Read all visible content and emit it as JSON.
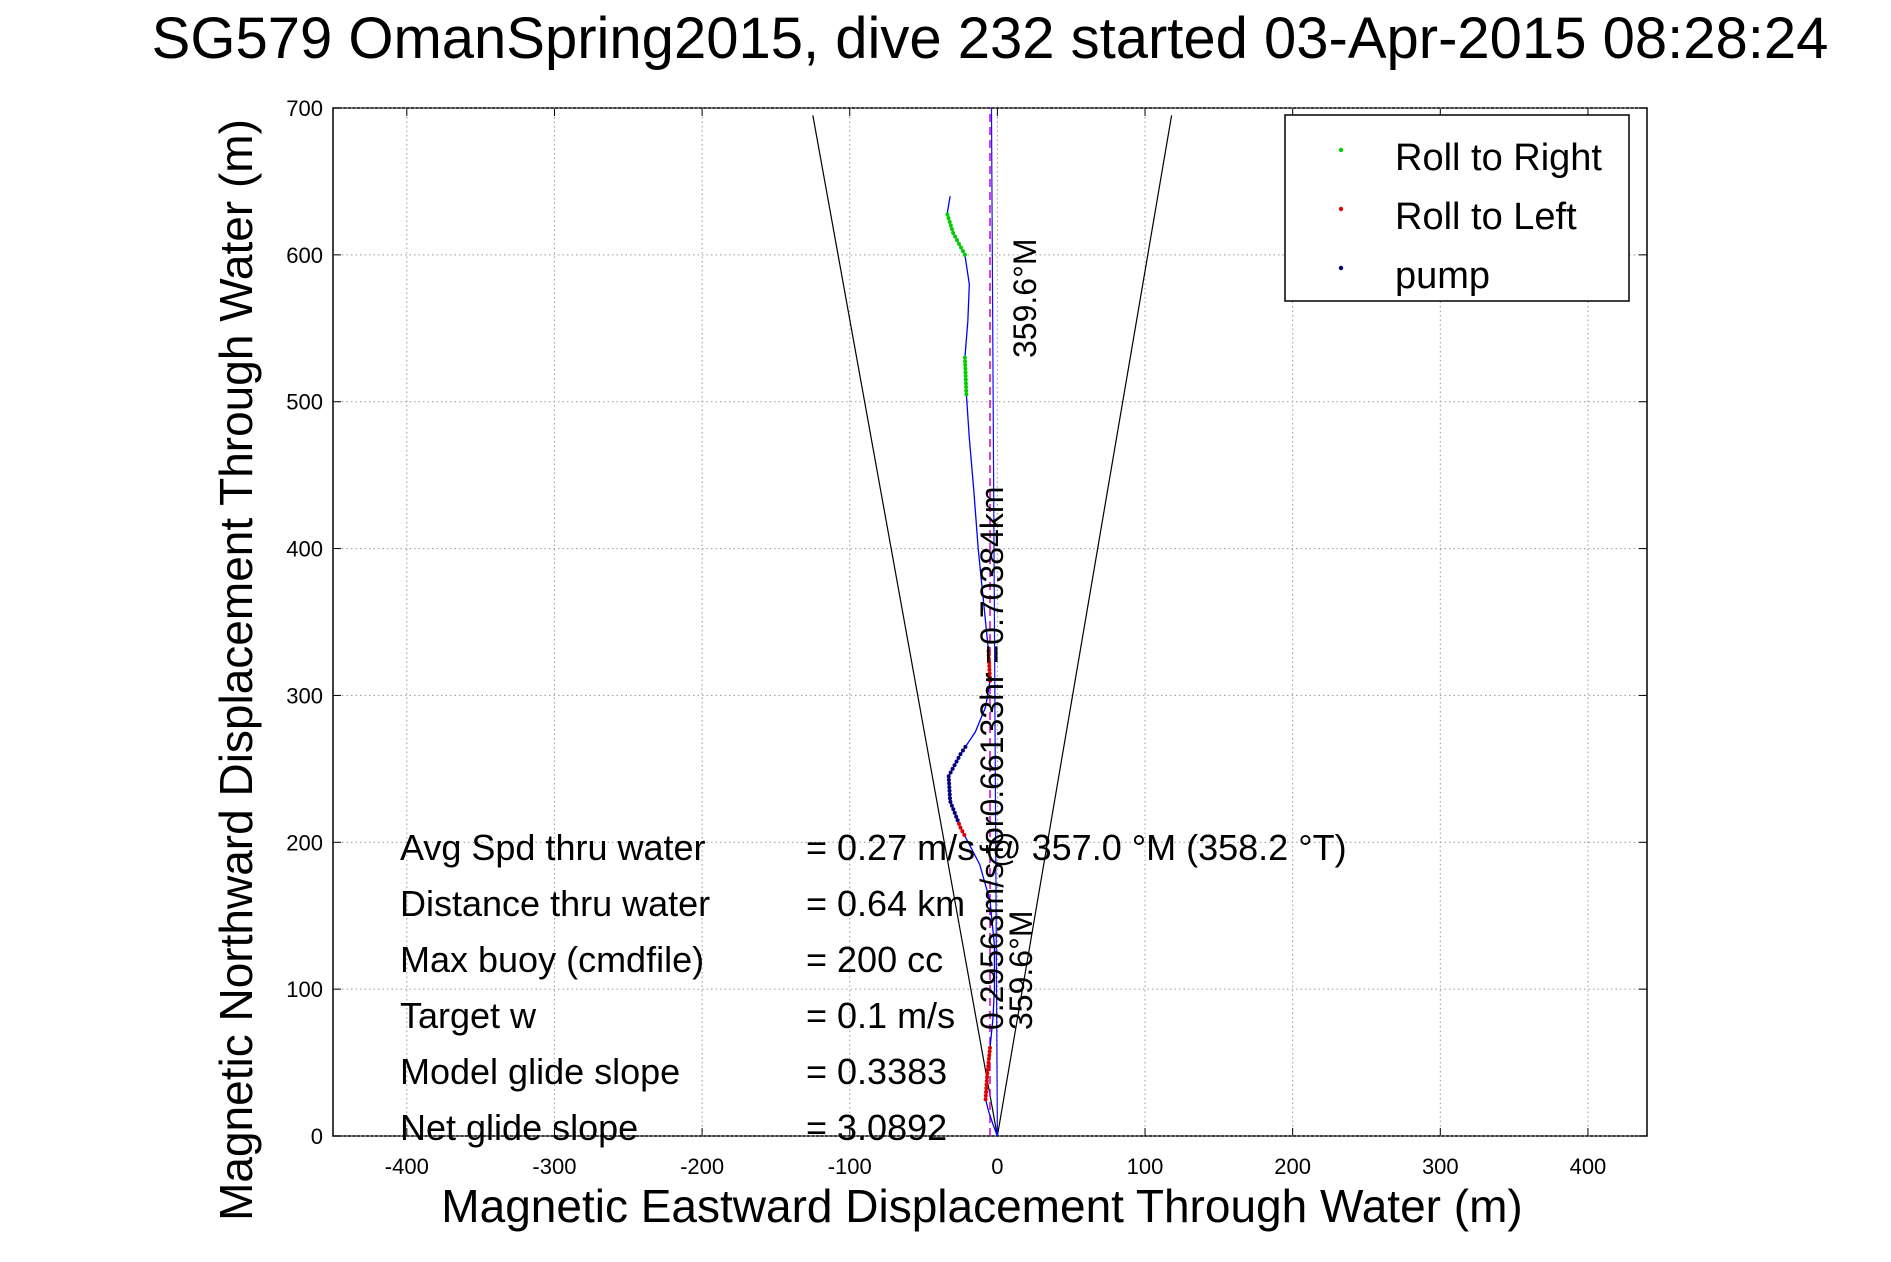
{
  "chart_data": {
    "type": "line",
    "title": "SG579 OmanSpring2015, dive 232 started 03-Apr-2015 08:28:24",
    "xlabel": "Magnetic Eastward Displacement Through Water (m)",
    "ylabel": "Magnetic Northward Displacement Through Water (m)",
    "xlim": [
      -450,
      440
    ],
    "ylim": [
      0,
      700
    ],
    "xticks": [
      -400,
      -300,
      -200,
      -100,
      0,
      100,
      200,
      300,
      400
    ],
    "yticks": [
      0,
      100,
      200,
      300,
      400,
      500,
      600,
      700
    ],
    "grid": true,
    "legend_position": "top-right",
    "legend": [
      {
        "name": "Roll to Right",
        "color": "#00d000"
      },
      {
        "name": "Roll to Left",
        "color": "#e00000"
      },
      {
        "name": "pump",
        "color": "#000080"
      }
    ],
    "track": [
      {
        "x": 0,
        "y": 0
      },
      {
        "x": -3,
        "y": 8
      },
      {
        "x": -6,
        "y": 17
      },
      {
        "x": -8,
        "y": 25
      },
      {
        "x": -7,
        "y": 40
      },
      {
        "x": -5,
        "y": 60
      },
      {
        "x": -3,
        "y": 80
      },
      {
        "x": -2,
        "y": 100
      },
      {
        "x": -2,
        "y": 130
      },
      {
        "x": -5,
        "y": 160
      },
      {
        "x": -12,
        "y": 185
      },
      {
        "x": -25,
        "y": 210
      },
      {
        "x": -32,
        "y": 228
      },
      {
        "x": -33,
        "y": 245
      },
      {
        "x": -25,
        "y": 260
      },
      {
        "x": -15,
        "y": 275
      },
      {
        "x": -8,
        "y": 292
      },
      {
        "x": -5,
        "y": 310
      },
      {
        "x": -6,
        "y": 330
      },
      {
        "x": -9,
        "y": 360
      },
      {
        "x": -13,
        "y": 400
      },
      {
        "x": -16,
        "y": 440
      },
      {
        "x": -19,
        "y": 475
      },
      {
        "x": -21,
        "y": 505
      },
      {
        "x": -22,
        "y": 530
      },
      {
        "x": -20,
        "y": 555
      },
      {
        "x": -19,
        "y": 580
      },
      {
        "x": -22,
        "y": 600
      },
      {
        "x": -30,
        "y": 615
      },
      {
        "x": -34,
        "y": 628
      },
      {
        "x": -32,
        "y": 640
      }
    ],
    "roll_right_segments": [
      [
        -22,
        505
      ],
      [
        -22,
        530
      ],
      [
        -22,
        600
      ],
      [
        -34,
        628
      ]
    ],
    "roll_left_segments": [
      [
        -8,
        25
      ],
      [
        -5,
        60
      ],
      [
        -30,
        205
      ],
      [
        -28,
        215
      ],
      [
        -5,
        310
      ],
      [
        -6,
        330
      ]
    ],
    "pump_segments": [
      [
        -30,
        215
      ],
      [
        -25,
        265
      ]
    ],
    "cone_lines": [
      {
        "x1": 0,
        "y1": 0,
        "x2": -125,
        "y2": 695
      },
      {
        "x1": 0,
        "y1": 0,
        "x2": 118,
        "y2": 695
      }
    ],
    "heading_line": {
      "x1": -5,
      "y1": 0,
      "x2": -5,
      "y2": 700
    },
    "direct_line": {
      "x1": 0,
      "y1": 0,
      "x2": -4,
      "y2": 700
    },
    "annotations": {
      "speed_line": "0.29563m/s for0.66133hr =0.70384km",
      "heading_top": "359.6°M",
      "heading_bottom": "359.6°M"
    },
    "stats": [
      {
        "label": "Avg Spd thru water",
        "value": "=  0.27 m/s @ 357.0 °M (358.2 °T)"
      },
      {
        "label": "Distance thru water",
        "value": "=  0.64 km"
      },
      {
        "label": "Max buoy (cmdfile)",
        "value": "= 200 cc"
      },
      {
        "label": "Target w",
        "value": "= 0.1 m/s"
      },
      {
        "label": "Model glide slope",
        "value": "= 0.3383"
      },
      {
        "label": "Net glide slope",
        "value": "= 3.0892"
      }
    ]
  }
}
